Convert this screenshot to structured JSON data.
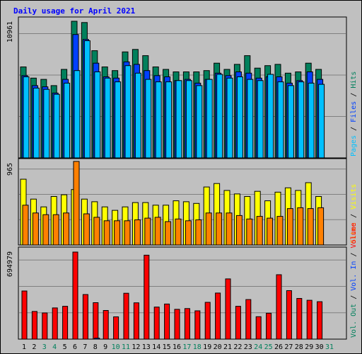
{
  "chart_data": [
    {
      "type": "bar",
      "title": "Daily usage for April 2021",
      "panel": "hits-files-pages",
      "ymax_label": "10961",
      "ymax": 10961,
      "legend": [
        {
          "label": "Hits",
          "color": "#00805c"
        },
        {
          "label": "Files",
          "color": "#0040ff"
        },
        {
          "label": "Pages",
          "color": "#00c0ff"
        }
      ],
      "series": [
        {
          "name": "Hits",
          "color": "#00805c",
          "values": [
            7300,
            6400,
            6300,
            5800,
            7100,
            10961,
            10861,
            8600,
            7300,
            7000,
            8500,
            8700,
            8200,
            7300,
            7100,
            6900,
            6900,
            6900,
            7000,
            7600,
            7100,
            7500,
            8200,
            7200,
            7400,
            7500,
            6800,
            6900,
            7600,
            7100
          ]
        },
        {
          "name": "Files",
          "color": "#0040ff",
          "values": [
            6600,
            5800,
            5700,
            5200,
            6300,
            9900,
            9500,
            7600,
            6500,
            6400,
            7700,
            7500,
            7000,
            6600,
            6500,
            6200,
            6300,
            6000,
            6300,
            6800,
            6600,
            6900,
            6800,
            6400,
            6500,
            6500,
            6000,
            6200,
            6900,
            6300
          ]
        },
        {
          "name": "Pages",
          "color": "#00c0ff",
          "values": [
            6500,
            5600,
            5500,
            5100,
            6000,
            7000,
            9400,
            6900,
            6400,
            6100,
            7400,
            6800,
            6300,
            6100,
            6100,
            6200,
            6200,
            5800,
            6300,
            6700,
            6400,
            6500,
            6300,
            6200,
            6700,
            6100,
            5800,
            6100,
            6000,
            5900
          ]
        }
      ]
    },
    {
      "type": "bar",
      "panel": "visits-sites",
      "ymax_label": "965",
      "ymax": 965,
      "legend": [
        {
          "label": "Visits",
          "color": "#ffff00"
        },
        {
          "label": "Sites",
          "color": "#ff8000"
        }
      ],
      "series": [
        {
          "name": "Visits",
          "color": "#ffff00",
          "values": [
            760,
            530,
            440,
            560,
            580,
            640,
            530,
            500,
            440,
            400,
            440,
            490,
            490,
            460,
            460,
            510,
            500,
            480,
            670,
            710,
            630,
            590,
            560,
            620,
            510,
            610,
            660,
            630,
            720,
            560
          ]
        },
        {
          "name": "Sites",
          "color": "#ff8000",
          "values": [
            460,
            370,
            350,
            350,
            370,
            965,
            360,
            320,
            280,
            280,
            280,
            290,
            310,
            320,
            270,
            300,
            280,
            290,
            370,
            370,
            370,
            340,
            300,
            330,
            310,
            330,
            420,
            430,
            420,
            430
          ]
        }
      ]
    },
    {
      "type": "bar",
      "panel": "volume",
      "ymax_label": "694979",
      "ymax": 694979,
      "legend": [
        {
          "label": "Volume",
          "color": "#ff0000"
        },
        {
          "label": "Vol. In",
          "color": "#0040ff"
        },
        {
          "label": "Vol. Out",
          "color": "#00805c"
        }
      ],
      "series": [
        {
          "name": "Volume",
          "color": "#ff0000",
          "values": [
            384000,
            221000,
            209000,
            249000,
            262000,
            694979,
            356000,
            291000,
            229000,
            178000,
            366000,
            290000,
            670000,
            256000,
            280000,
            238000,
            244000,
            226000,
            294000,
            368000,
            481000,
            262000,
            316000,
            179000,
            207000,
            514000,
            387000,
            325000,
            310000,
            299000
          ]
        },
        {
          "name": "Vol. In",
          "color": "#0040ff",
          "values": [
            0,
            0,
            0,
            0,
            0,
            0,
            0,
            8000,
            0,
            0,
            0,
            0,
            0,
            0,
            0,
            0,
            0,
            0,
            0,
            0,
            0,
            0,
            0,
            0,
            0,
            0,
            0,
            0,
            0,
            0
          ]
        },
        {
          "name": "Vol. Out",
          "color": "#00805c",
          "values": [
            0,
            0,
            0,
            0,
            0,
            0,
            0,
            0,
            0,
            0,
            0,
            0,
            0,
            0,
            0,
            0,
            0,
            0,
            0,
            0,
            0,
            0,
            0,
            0,
            0,
            0,
            0,
            0,
            0,
            0
          ]
        }
      ]
    }
  ],
  "days": [
    "1",
    "2",
    "3",
    "4",
    "5",
    "6",
    "7",
    "8",
    "9",
    "10",
    "11",
    "12",
    "13",
    "14",
    "15",
    "16",
    "17",
    "18",
    "19",
    "20",
    "21",
    "22",
    "23",
    "24",
    "25",
    "26",
    "27",
    "28",
    "29",
    "30",
    "31"
  ],
  "weekend_days": [
    3,
    4,
    10,
    11,
    17,
    18,
    24,
    25,
    31
  ],
  "colors": {
    "weekday_text": "#000000",
    "weekend_text": "#00805c",
    "title": "#0000ff"
  }
}
